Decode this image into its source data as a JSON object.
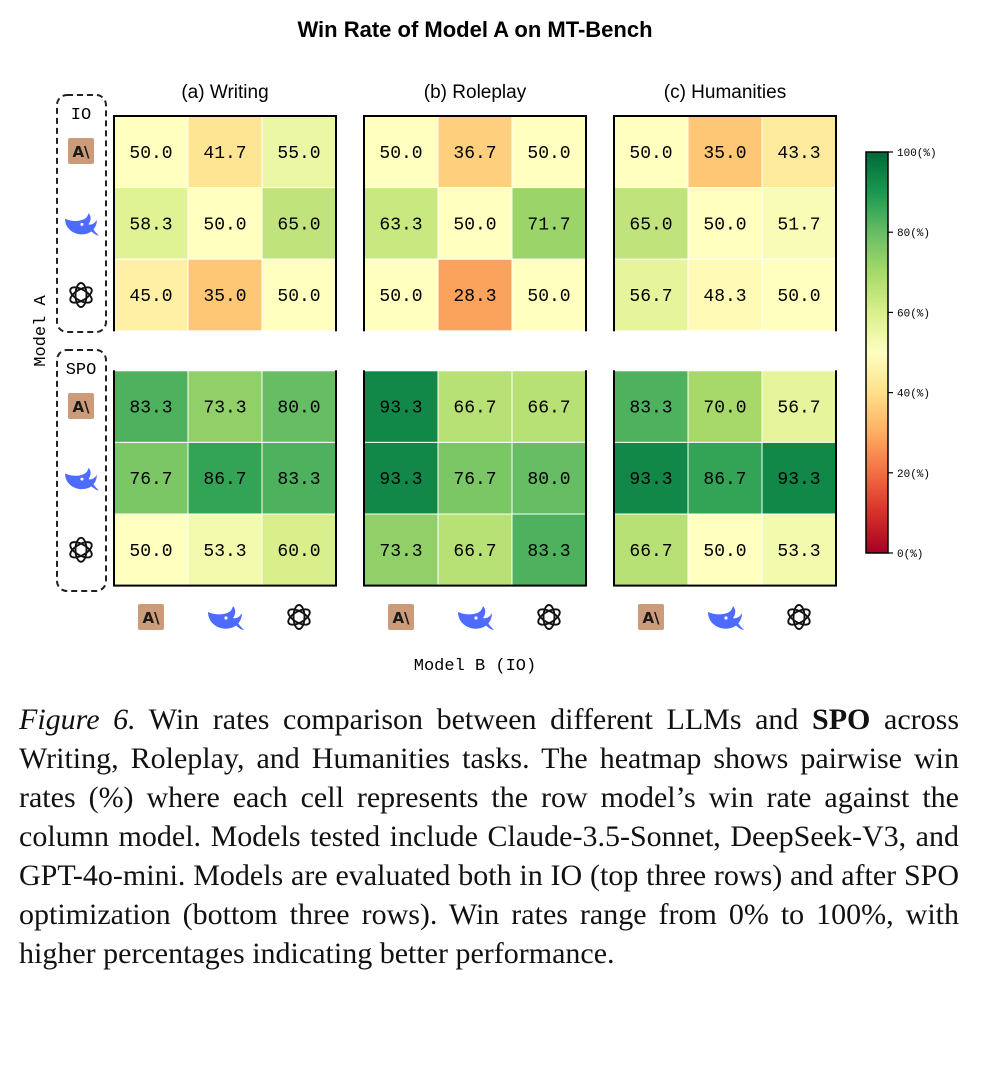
{
  "chart_data": {
    "type": "heatmap",
    "title": "Win Rate of Model A on MT-Bench",
    "xlabel": "Model B (IO)",
    "ylabel": "Model A",
    "panels": [
      {
        "title": "(a) Writing",
        "values": [
          [
            50.0,
            41.7,
            55.0
          ],
          [
            58.3,
            50.0,
            65.0
          ],
          [
            45.0,
            35.0,
            50.0
          ],
          [
            83.3,
            73.3,
            80.0
          ],
          [
            76.7,
            86.7,
            83.3
          ],
          [
            50.0,
            53.3,
            60.0
          ]
        ]
      },
      {
        "title": "(b) Roleplay",
        "values": [
          [
            50.0,
            36.7,
            50.0
          ],
          [
            63.3,
            50.0,
            71.7
          ],
          [
            50.0,
            28.3,
            50.0
          ],
          [
            93.3,
            66.7,
            66.7
          ],
          [
            93.3,
            76.7,
            80.0
          ],
          [
            73.3,
            66.7,
            83.3
          ]
        ]
      },
      {
        "title": "(c) Humanities",
        "values": [
          [
            50.0,
            35.0,
            43.3
          ],
          [
            65.0,
            50.0,
            51.7
          ],
          [
            56.7,
            48.3,
            50.0
          ],
          [
            83.3,
            70.0,
            56.7
          ],
          [
            93.3,
            86.7,
            93.3
          ],
          [
            66.7,
            50.0,
            53.3
          ]
        ]
      }
    ],
    "row_groups": [
      {
        "label": "IO",
        "models": [
          "claude",
          "deepseek",
          "gpt"
        ]
      },
      {
        "label": "SPO",
        "models": [
          "claude",
          "deepseek",
          "gpt"
        ]
      }
    ],
    "columns": [
      "claude",
      "deepseek",
      "gpt"
    ],
    "colorbar": {
      "range": [
        0,
        100
      ],
      "ticks": [
        "0(%)",
        "20(%)",
        "40(%)",
        "60(%)",
        "80(%)",
        "100(%)"
      ],
      "colors": [
        "#a50026",
        "#d73027",
        "#f46d43",
        "#fdae61",
        "#fee08b",
        "#ffffbf",
        "#d9ef8b",
        "#a6d96a",
        "#66bd63",
        "#1a9850",
        "#006837"
      ]
    }
  },
  "icons": {
    "claude": {
      "name": "anthropic-logo-icon",
      "glyph": "A\\",
      "color": "#cc9b7a"
    },
    "deepseek": {
      "name": "deepseek-whale-icon",
      "color": "#4d6bfe"
    },
    "gpt": {
      "name": "openai-logo-icon",
      "color": "#111111"
    }
  },
  "caption": {
    "label": "Figure 6.",
    "part1": " Win rates comparison between different LLMs and ",
    "bold": "SPO",
    "part2": " across Writing, Roleplay, and Humanities tasks.  The heatmap shows pairwise win rates (%) where each cell represents the row model’s win rate against the column model. Models tested include Claude-3.5-Sonnet, DeepSeek-V3, and GPT-4o-mini. Models are evaluated both in IO (top three rows) and after SPO optimization (bottom three rows).  Win rates range from 0% to 100%, with higher percentages indicating better performance."
  }
}
